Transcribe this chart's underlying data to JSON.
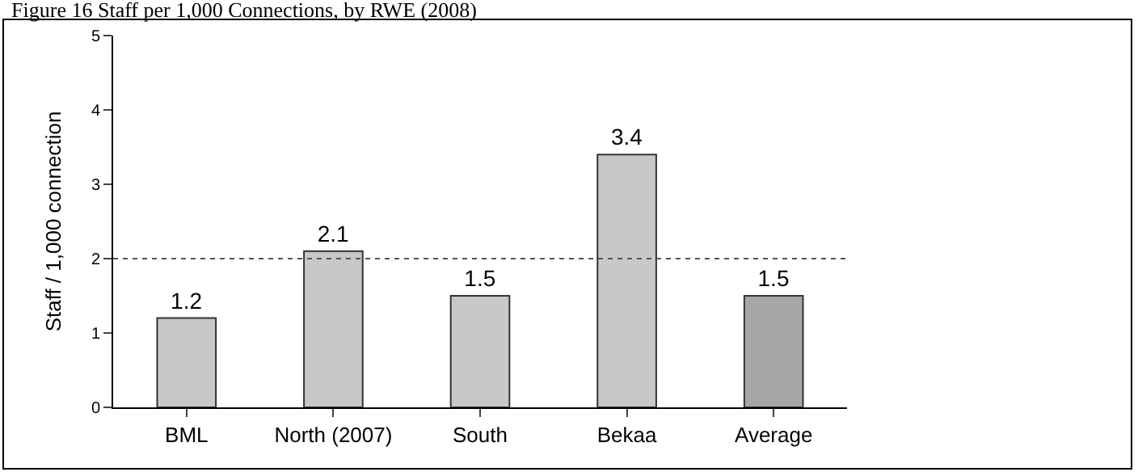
{
  "chart_data": {
    "type": "bar",
    "title": "Figure 16 Staff per 1,000 Connections, by RWE (2008)",
    "ylabel": "Staff / 1,000 connection",
    "categories": [
      "BML",
      "North (2007)",
      "South",
      "Bekaa",
      "Average"
    ],
    "values": [
      1.2,
      2.1,
      1.5,
      3.4,
      1.5
    ],
    "colors": [
      "#c8c8c8",
      "#c8c8c8",
      "#c8c8c8",
      "#c8c8c8",
      "#a6a6a6"
    ],
    "ylim": [
      0,
      5
    ],
    "yticks": [
      0,
      1,
      2,
      3,
      4,
      5
    ],
    "data_labels": true,
    "ref_lines": [
      {
        "axis": "y",
        "value": 2,
        "label": null,
        "color": "#555555",
        "line_style": "dotted"
      }
    ]
  }
}
